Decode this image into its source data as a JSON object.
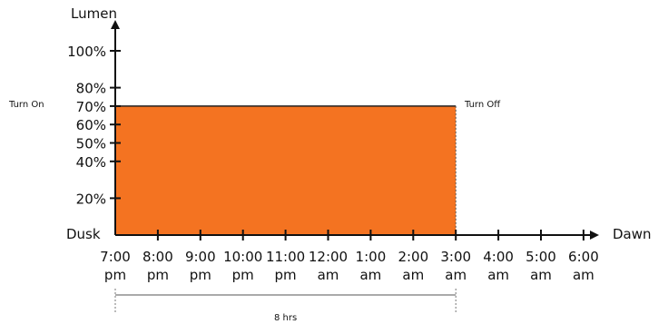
{
  "chart_data": {
    "type": "area",
    "ylabel": "Lumen",
    "y_ticks": [
      "20%",
      "40%",
      "50%",
      "60%",
      "70%",
      "80%",
      "100%"
    ],
    "y_tick_values": [
      20,
      40,
      50,
      60,
      70,
      80,
      100
    ],
    "ylim": [
      0,
      100
    ],
    "y_origin_label": "Dusk",
    "x_end_label": "Dawn",
    "x_ticks": [
      [
        "7:00",
        "pm"
      ],
      [
        "8:00",
        "pm"
      ],
      [
        "9:00",
        "pm"
      ],
      [
        "10:00",
        "pm"
      ],
      [
        "11:00",
        "pm"
      ],
      [
        "12:00",
        "am"
      ],
      [
        "1:00",
        "am"
      ],
      [
        "2:00",
        "am"
      ],
      [
        "3:00",
        "am"
      ],
      [
        "4:00",
        "am"
      ],
      [
        "5:00",
        "am"
      ],
      [
        "6:00",
        "am"
      ]
    ],
    "series": [
      {
        "start": "7:00 pm",
        "end": "3:00 am",
        "level": 70,
        "color": "#F47321"
      }
    ],
    "annotations": {
      "turn_on": "Turn On",
      "turn_off": "Turn Off",
      "duration": "8 hrs"
    },
    "grid": false
  }
}
